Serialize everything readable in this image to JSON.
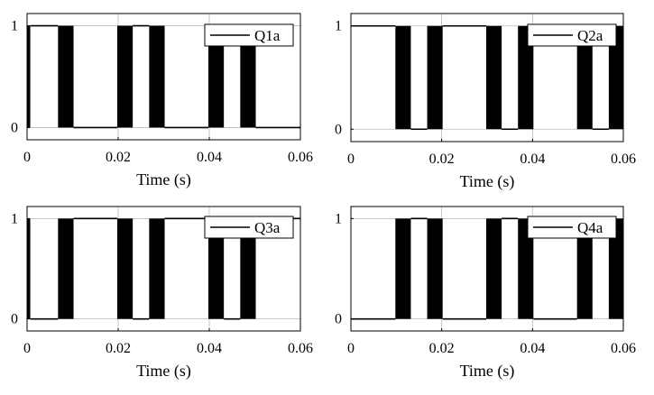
{
  "chart_data": [
    {
      "type": "line",
      "step": true,
      "xlabel": "Time (s)",
      "ylabel": "",
      "xlim": [
        0,
        0.06
      ],
      "ylim": [
        -0.12,
        1.12
      ],
      "xticks": [
        0,
        0.02,
        0.04,
        0.06
      ],
      "xtick_labels": [
        "0",
        "0.02",
        "0.04",
        "0.06"
      ],
      "yticks": [
        0,
        1
      ],
      "ytick_labels": [
        "0",
        "1"
      ],
      "grid": true,
      "legend_position": "top-right",
      "series": [
        {
          "name": "Q1a",
          "color": "#000000",
          "segments": [
            {
              "from": 0,
              "to": 0.0007,
              "state": "switching"
            },
            {
              "from": 0.0007,
              "to": 0.0068,
              "state": 1
            },
            {
              "from": 0.0068,
              "to": 0.0102,
              "state": "switching"
            },
            {
              "from": 0.0102,
              "to": 0.0198,
              "state": 0
            },
            {
              "from": 0.0198,
              "to": 0.0232,
              "state": "switching"
            },
            {
              "from": 0.0232,
              "to": 0.0268,
              "state": 1
            },
            {
              "from": 0.0268,
              "to": 0.0302,
              "state": "switching"
            },
            {
              "from": 0.0302,
              "to": 0.0398,
              "state": 0
            },
            {
              "from": 0.0398,
              "to": 0.0432,
              "state": "switching"
            },
            {
              "from": 0.0432,
              "to": 0.0468,
              "state": 1
            },
            {
              "from": 0.0468,
              "to": 0.0502,
              "state": "switching"
            },
            {
              "from": 0.0502,
              "to": 0.06,
              "state": 0
            }
          ]
        }
      ]
    },
    {
      "type": "line",
      "step": true,
      "xlabel": "Time (s)",
      "ylabel": "",
      "xlim": [
        0,
        0.06
      ],
      "ylim": [
        -0.12,
        1.12
      ],
      "xticks": [
        0,
        0.02,
        0.04,
        0.06
      ],
      "xtick_labels": [
        "0",
        "0.02",
        "0.04",
        "0.06"
      ],
      "yticks": [
        0,
        1
      ],
      "ytick_labels": [
        "0",
        "1"
      ],
      "grid": true,
      "legend_position": "top-right",
      "series": [
        {
          "name": "Q2a",
          "color": "#000000",
          "segments": [
            {
              "from": 0,
              "to": 0.0098,
              "state": 1
            },
            {
              "from": 0.0098,
              "to": 0.0132,
              "state": "switching"
            },
            {
              "from": 0.0132,
              "to": 0.0168,
              "state": 0
            },
            {
              "from": 0.0168,
              "to": 0.0202,
              "state": "switching"
            },
            {
              "from": 0.0202,
              "to": 0.0298,
              "state": 1
            },
            {
              "from": 0.0298,
              "to": 0.0332,
              "state": "switching"
            },
            {
              "from": 0.0332,
              "to": 0.0368,
              "state": 0
            },
            {
              "from": 0.0368,
              "to": 0.0402,
              "state": "switching"
            },
            {
              "from": 0.0402,
              "to": 0.0498,
              "state": 1
            },
            {
              "from": 0.0498,
              "to": 0.0532,
              "state": "switching"
            },
            {
              "from": 0.0532,
              "to": 0.0568,
              "state": 0
            },
            {
              "from": 0.0568,
              "to": 0.06,
              "state": "switching"
            }
          ]
        }
      ]
    },
    {
      "type": "line",
      "step": true,
      "xlabel": "Time (s)",
      "ylabel": "",
      "xlim": [
        0,
        0.06
      ],
      "ylim": [
        -0.12,
        1.12
      ],
      "xticks": [
        0,
        0.02,
        0.04,
        0.06
      ],
      "xtick_labels": [
        "0",
        "0.02",
        "0.04",
        "0.06"
      ],
      "yticks": [
        0,
        1
      ],
      "ytick_labels": [
        "0",
        "1"
      ],
      "grid": true,
      "legend_position": "top-right",
      "series": [
        {
          "name": "Q3a",
          "color": "#000000",
          "segments": [
            {
              "from": 0,
              "to": 0.0007,
              "state": "switching"
            },
            {
              "from": 0.0007,
              "to": 0.0068,
              "state": 0
            },
            {
              "from": 0.0068,
              "to": 0.0102,
              "state": "switching"
            },
            {
              "from": 0.0102,
              "to": 0.0198,
              "state": 1
            },
            {
              "from": 0.0198,
              "to": 0.0232,
              "state": "switching"
            },
            {
              "from": 0.0232,
              "to": 0.0268,
              "state": 0
            },
            {
              "from": 0.0268,
              "to": 0.0302,
              "state": "switching"
            },
            {
              "from": 0.0302,
              "to": 0.0398,
              "state": 1
            },
            {
              "from": 0.0398,
              "to": 0.0432,
              "state": "switching"
            },
            {
              "from": 0.0432,
              "to": 0.0468,
              "state": 0
            },
            {
              "from": 0.0468,
              "to": 0.0502,
              "state": "switching"
            },
            {
              "from": 0.0502,
              "to": 0.06,
              "state": 1
            }
          ]
        }
      ]
    },
    {
      "type": "line",
      "step": true,
      "xlabel": "Time (s)",
      "ylabel": "",
      "xlim": [
        0,
        0.06
      ],
      "ylim": [
        -0.12,
        1.12
      ],
      "xticks": [
        0,
        0.02,
        0.04,
        0.06
      ],
      "xtick_labels": [
        "0",
        "0.02",
        "0.04",
        "0.06"
      ],
      "yticks": [
        0,
        1
      ],
      "ytick_labels": [
        "0",
        "1"
      ],
      "grid": true,
      "legend_position": "top-right",
      "series": [
        {
          "name": "Q4a",
          "color": "#000000",
          "segments": [
            {
              "from": 0,
              "to": 0.0098,
              "state": 0
            },
            {
              "from": 0.0098,
              "to": 0.0132,
              "state": "switching"
            },
            {
              "from": 0.0132,
              "to": 0.0168,
              "state": 1
            },
            {
              "from": 0.0168,
              "to": 0.0202,
              "state": "switching"
            },
            {
              "from": 0.0202,
              "to": 0.0298,
              "state": 0
            },
            {
              "from": 0.0298,
              "to": 0.0332,
              "state": "switching"
            },
            {
              "from": 0.0332,
              "to": 0.0368,
              "state": 1
            },
            {
              "from": 0.0368,
              "to": 0.0402,
              "state": "switching"
            },
            {
              "from": 0.0402,
              "to": 0.0498,
              "state": 0
            },
            {
              "from": 0.0498,
              "to": 0.0532,
              "state": "switching"
            },
            {
              "from": 0.0532,
              "to": 0.0568,
              "state": 1
            },
            {
              "from": 0.0568,
              "to": 0.06,
              "state": "switching"
            }
          ]
        }
      ]
    }
  ]
}
